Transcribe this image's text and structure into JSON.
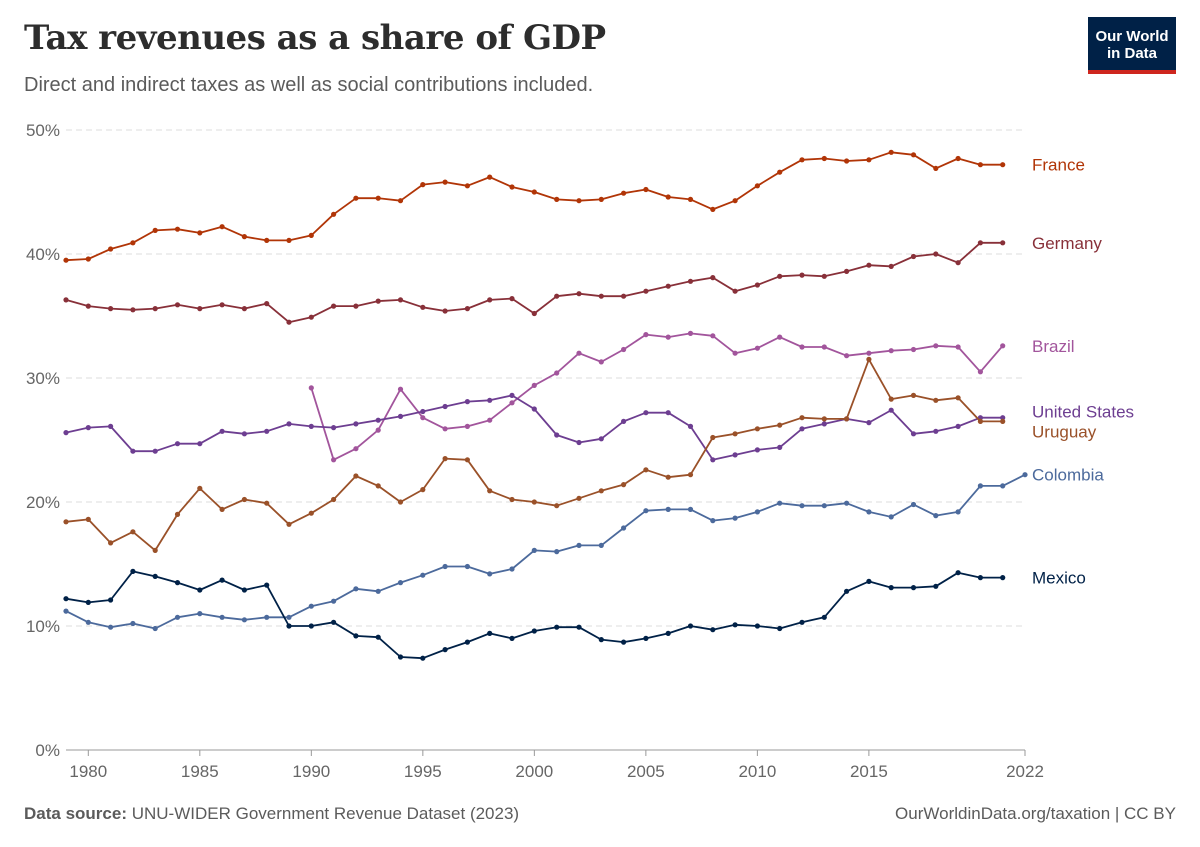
{
  "header": {
    "title": "Tax revenues as a share of GDP",
    "subtitle": "Direct and indirect taxes as well as social contributions included."
  },
  "logo": {
    "line1": "Our World",
    "line2": "in Data"
  },
  "footer": {
    "source_label": "Data source:",
    "source_text": "UNU-WIDER Government Revenue Dataset (2023)",
    "credit": "OurWorldinData.org/taxation | CC BY"
  },
  "chart_data": {
    "type": "line",
    "title": "Tax revenues as a share of GDP",
    "xlabel": "",
    "ylabel": "",
    "xlim": [
      1979,
      2022
    ],
    "ylim": [
      0,
      50
    ],
    "grid": true,
    "x_ticks": [
      1980,
      1985,
      1990,
      1995,
      2000,
      2005,
      2010,
      2015,
      2022
    ],
    "y_ticks": [
      {
        "value": 0,
        "label": "0%"
      },
      {
        "value": 10,
        "label": "10%"
      },
      {
        "value": 20,
        "label": "20%"
      },
      {
        "value": 30,
        "label": "30%"
      },
      {
        "value": 40,
        "label": "40%"
      },
      {
        "value": 50,
        "label": "50%"
      }
    ],
    "legend_placement": "right",
    "series": [
      {
        "name": "France",
        "color": "#b13507",
        "x": [
          1979,
          1980,
          1981,
          1982,
          1983,
          1984,
          1985,
          1986,
          1987,
          1988,
          1989,
          1990,
          1991,
          1992,
          1993,
          1994,
          1995,
          1996,
          1997,
          1998,
          1999,
          2000,
          2001,
          2002,
          2003,
          2004,
          2005,
          2006,
          2007,
          2008,
          2009,
          2010,
          2011,
          2012,
          2013,
          2014,
          2015,
          2016,
          2017,
          2018,
          2019,
          2020,
          2021
        ],
        "y": [
          39.5,
          39.6,
          40.4,
          40.9,
          41.9,
          42.0,
          41.7,
          42.2,
          41.4,
          41.1,
          41.1,
          41.5,
          43.2,
          44.5,
          44.5,
          44.3,
          45.6,
          45.8,
          45.5,
          46.2,
          45.4,
          45.0,
          44.4,
          44.3,
          44.4,
          44.9,
          45.2,
          44.6,
          44.4,
          43.6,
          44.3,
          45.5,
          46.6,
          47.6,
          47.7,
          47.5,
          47.6,
          48.2,
          48.0,
          46.9,
          47.7,
          47.2,
          47.2
        ]
      },
      {
        "name": "Germany",
        "color": "#883039",
        "x": [
          1979,
          1980,
          1981,
          1982,
          1983,
          1984,
          1985,
          1986,
          1987,
          1988,
          1989,
          1990,
          1991,
          1992,
          1993,
          1994,
          1995,
          1996,
          1997,
          1998,
          1999,
          2000,
          2001,
          2002,
          2003,
          2004,
          2005,
          2006,
          2007,
          2008,
          2009,
          2010,
          2011,
          2012,
          2013,
          2014,
          2015,
          2016,
          2017,
          2018,
          2019,
          2020,
          2021
        ],
        "y": [
          36.3,
          35.8,
          35.6,
          35.5,
          35.6,
          35.9,
          35.6,
          35.9,
          35.6,
          36.0,
          34.5,
          34.9,
          35.8,
          35.8,
          36.2,
          36.3,
          35.7,
          35.4,
          35.6,
          36.3,
          36.4,
          35.2,
          36.6,
          36.8,
          36.6,
          36.6,
          37.0,
          37.4,
          37.8,
          38.1,
          37.0,
          37.5,
          38.2,
          38.3,
          38.2,
          38.6,
          39.1,
          39.0,
          39.8,
          40.0,
          39.3,
          40.9,
          40.9
        ]
      },
      {
        "name": "Brazil",
        "color": "#a2559c",
        "x": [
          1990,
          1991,
          1992,
          1993,
          1994,
          1995,
          1996,
          1997,
          1998,
          1999,
          2000,
          2001,
          2002,
          2003,
          2004,
          2005,
          2006,
          2007,
          2008,
          2009,
          2010,
          2011,
          2012,
          2013,
          2014,
          2015,
          2016,
          2017,
          2018,
          2019,
          2020,
          2021
        ],
        "y": [
          29.2,
          23.4,
          24.3,
          25.8,
          29.1,
          26.8,
          25.9,
          26.1,
          26.6,
          28.0,
          29.4,
          30.4,
          32.0,
          31.3,
          32.3,
          33.5,
          33.3,
          33.6,
          33.4,
          32.0,
          32.4,
          33.3,
          32.5,
          32.5,
          31.8,
          32.0,
          32.2,
          32.3,
          32.6,
          32.5,
          30.5,
          32.6
        ]
      },
      {
        "name": "United States",
        "color": "#6d3e91",
        "x": [
          1979,
          1980,
          1981,
          1982,
          1983,
          1984,
          1985,
          1986,
          1987,
          1988,
          1989,
          1990,
          1991,
          1992,
          1993,
          1994,
          1995,
          1996,
          1997,
          1998,
          1999,
          2000,
          2001,
          2002,
          2003,
          2004,
          2005,
          2006,
          2007,
          2008,
          2009,
          2010,
          2011,
          2012,
          2013,
          2014,
          2015,
          2016,
          2017,
          2018,
          2019,
          2020,
          2021
        ],
        "y": [
          25.6,
          26.0,
          26.1,
          24.1,
          24.1,
          24.7,
          24.7,
          25.7,
          25.5,
          25.7,
          26.3,
          26.1,
          26.0,
          26.3,
          26.6,
          26.9,
          27.3,
          27.7,
          28.1,
          28.2,
          28.6,
          27.5,
          25.4,
          24.8,
          25.1,
          26.5,
          27.2,
          27.2,
          26.1,
          23.4,
          23.8,
          24.2,
          24.4,
          25.9,
          26.3,
          26.7,
          26.4,
          27.4,
          25.5,
          25.7,
          26.1,
          26.8,
          26.8
        ]
      },
      {
        "name": "Uruguay",
        "color": "#9a5129",
        "x": [
          1979,
          1980,
          1981,
          1982,
          1983,
          1984,
          1985,
          1986,
          1987,
          1988,
          1989,
          1990,
          1991,
          1992,
          1993,
          1994,
          1995,
          1996,
          1997,
          1998,
          1999,
          2000,
          2001,
          2002,
          2003,
          2004,
          2005,
          2006,
          2007,
          2008,
          2009,
          2010,
          2011,
          2012,
          2013,
          2014,
          2015,
          2016,
          2017,
          2018,
          2019,
          2020,
          2021
        ],
        "y": [
          18.4,
          18.6,
          16.7,
          17.6,
          16.1,
          19.0,
          21.1,
          19.4,
          20.2,
          19.9,
          18.2,
          19.1,
          20.2,
          22.1,
          21.3,
          20.0,
          21.0,
          23.5,
          23.4,
          20.9,
          20.2,
          20.0,
          19.7,
          20.3,
          20.9,
          21.4,
          22.6,
          22.0,
          22.2,
          25.2,
          25.5,
          25.9,
          26.2,
          26.8,
          26.7,
          26.7,
          31.5,
          28.3,
          28.6,
          28.2,
          28.4,
          26.5,
          26.5
        ]
      },
      {
        "name": "Colombia",
        "color": "#4c6a9c",
        "x": [
          1979,
          1980,
          1981,
          1982,
          1983,
          1984,
          1985,
          1986,
          1987,
          1988,
          1989,
          1990,
          1991,
          1992,
          1993,
          1994,
          1995,
          1996,
          1997,
          1998,
          1999,
          2000,
          2001,
          2002,
          2003,
          2004,
          2005,
          2006,
          2007,
          2008,
          2009,
          2010,
          2011,
          2012,
          2013,
          2014,
          2015,
          2016,
          2017,
          2018,
          2019,
          2020,
          2021,
          2022
        ],
        "y": [
          11.2,
          10.3,
          9.9,
          10.2,
          9.8,
          10.7,
          11.0,
          10.7,
          10.5,
          10.7,
          10.7,
          11.6,
          12.0,
          13.0,
          12.8,
          13.5,
          14.1,
          14.8,
          14.8,
          14.2,
          14.6,
          16.1,
          16.0,
          16.5,
          16.5,
          17.9,
          19.3,
          19.4,
          19.4,
          18.5,
          18.7,
          19.2,
          19.9,
          19.7,
          19.7,
          19.9,
          19.2,
          18.8,
          19.8,
          18.9,
          19.2,
          21.3,
          21.3,
          22.2
        ]
      },
      {
        "name": "Mexico",
        "color": "#002147",
        "x": [
          1979,
          1980,
          1981,
          1982,
          1983,
          1984,
          1985,
          1986,
          1987,
          1988,
          1989,
          1990,
          1991,
          1992,
          1993,
          1994,
          1995,
          1996,
          1997,
          1998,
          1999,
          2000,
          2001,
          2002,
          2003,
          2004,
          2005,
          2006,
          2007,
          2008,
          2009,
          2010,
          2011,
          2012,
          2013,
          2014,
          2015,
          2016,
          2017,
          2018,
          2019,
          2020,
          2021
        ],
        "y": [
          12.2,
          11.9,
          12.1,
          14.4,
          14.0,
          13.5,
          12.9,
          13.7,
          12.9,
          13.3,
          10.0,
          10.0,
          10.3,
          9.2,
          9.1,
          7.5,
          7.4,
          8.1,
          8.7,
          9.4,
          9.0,
          9.6,
          9.9,
          9.9,
          8.9,
          8.7,
          9.0,
          9.4,
          10.0,
          9.7,
          10.1,
          10.0,
          9.8,
          10.3,
          10.7,
          12.8,
          13.6,
          13.1,
          13.1,
          13.2,
          14.3,
          13.9,
          13.9
        ]
      }
    ],
    "series_labels": [
      "France",
      "Germany",
      "Brazil",
      "United States",
      "Uruguay",
      "Colombia",
      "Mexico"
    ]
  }
}
